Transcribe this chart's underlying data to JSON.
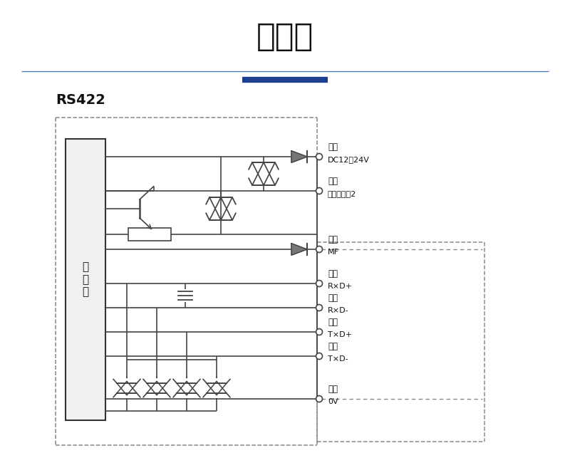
{
  "title": "接线图",
  "subtitle": "RS422",
  "bg_color": "#ffffff",
  "title_color": "#000000",
  "line_color": "#555555",
  "dark_line_color": "#444444",
  "labels": [
    {
      "color_text": "棕色",
      "signal": "DC12～24V",
      "key": "brown"
    },
    {
      "color_text": "紫色",
      "signal": "开关量输出2",
      "key": "purple"
    },
    {
      "color_text": "灰色",
      "signal": "MF",
      "key": "gray"
    },
    {
      "color_text": "橙色",
      "signal": "R×D+",
      "key": "orange"
    },
    {
      "color_text": "粉色",
      "signal": "R×D-",
      "key": "pink"
    },
    {
      "color_text": "黑色",
      "signal": "T×D+",
      "key": "black"
    },
    {
      "color_text": "白色",
      "signal": "T×D-",
      "key": "white"
    },
    {
      "color_text": "蓝色",
      "signal": "0V",
      "key": "blue"
    }
  ]
}
